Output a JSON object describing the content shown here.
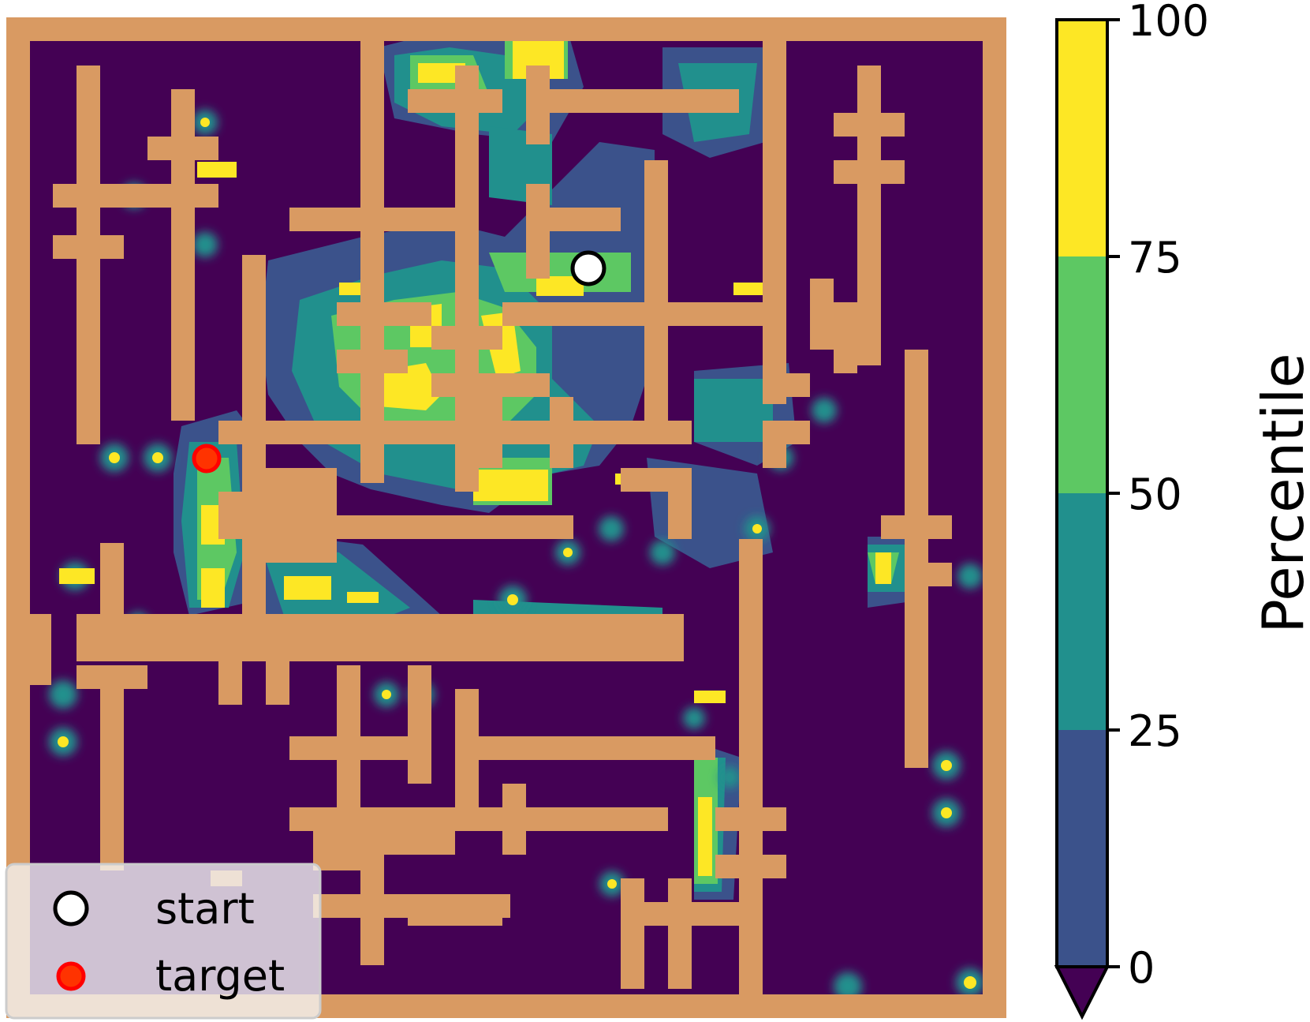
{
  "chart_data": {
    "type": "heatmap",
    "title": "",
    "xlabel": "",
    "ylabel": "",
    "grid": false,
    "colorbar": {
      "label": "Percentile",
      "min": 0,
      "max": 100,
      "ticks": [
        "0",
        "25",
        "50",
        "75",
        "100"
      ],
      "levels": [
        {
          "from": 0,
          "to": 25,
          "color": "#3b528b"
        },
        {
          "from": 25,
          "to": 50,
          "color": "#21908d"
        },
        {
          "from": 50,
          "to": 75,
          "color": "#5dc863"
        },
        {
          "from": 75,
          "to": 100,
          "color": "#fde725"
        }
      ],
      "under_color": "#440154",
      "extend": "min"
    },
    "maze": {
      "wall_color": "#d99a62",
      "background_color": "#440154"
    },
    "legend": {
      "placement": "lower-left",
      "entries": [
        {
          "label": "start",
          "marker": "circle",
          "fill": "#ffffff",
          "stroke": "#000000"
        },
        {
          "label": "target",
          "marker": "circle",
          "fill": "#ff3300",
          "stroke": "#ff0000"
        }
      ]
    }
  }
}
